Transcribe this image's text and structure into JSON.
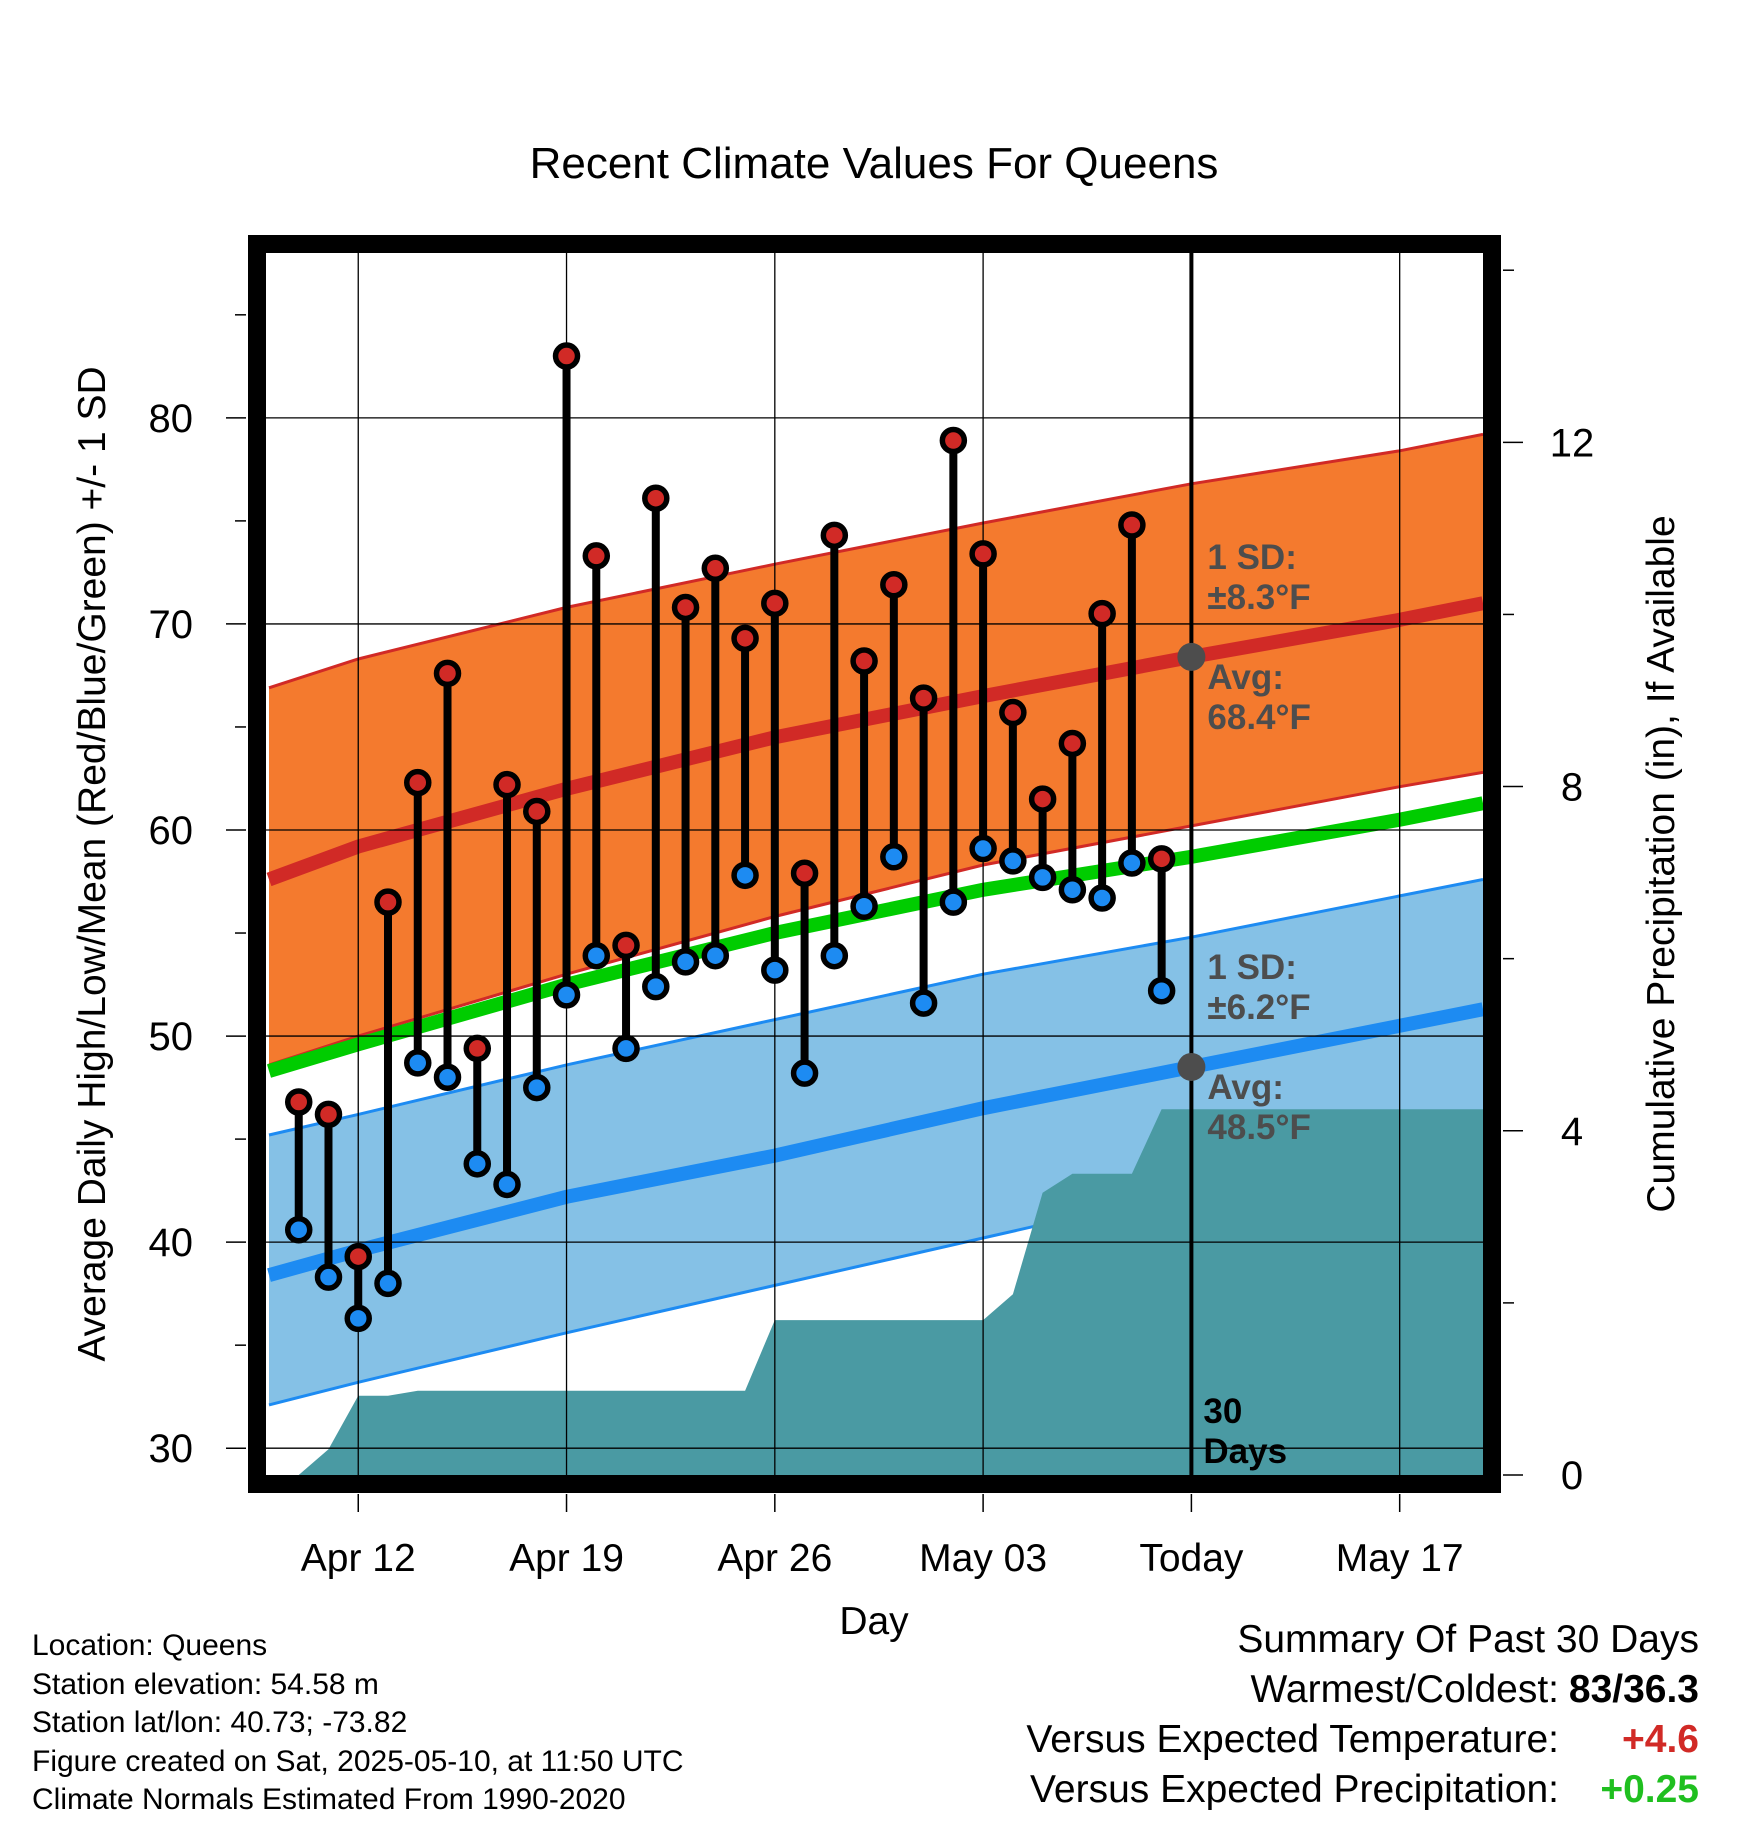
{
  "chart_data": {
    "type": "line",
    "title": "Recent Climate Values For Queens",
    "xlabel": "Day",
    "ylabel": "Average Daily High/Low/Mean (Red/Blue/Green) +/- 1 SD",
    "y2label": "Cumulative Precipitation (in), If Available",
    "ylim": [
      28.7,
      88
    ],
    "y2lim": [
      0,
      14.2
    ],
    "yticks": [
      30,
      40,
      50,
      60,
      70,
      80
    ],
    "y2ticks": [
      0,
      4,
      8,
      12
    ],
    "x_tick_labels": [
      "Apr 12",
      "Apr 19",
      "Apr 26",
      "May 03",
      "Today",
      "May 17"
    ],
    "x_ticks_day": [
      12,
      19,
      26,
      33,
      40,
      47
    ],
    "xlim": [
      8.9,
      49.8
    ],
    "today_day": 40,
    "x_note": "day numbers count April days; 31 = May 01",
    "grid": true,
    "normals": {
      "x_day": [
        9,
        12,
        19,
        26,
        33,
        40,
        47,
        49.8
      ],
      "avg_high": [
        57.6,
        59.2,
        62.0,
        64.5,
        66.5,
        68.4,
        70.2,
        71.0
      ],
      "high_upper": [
        66.9,
        68.3,
        70.8,
        72.9,
        74.9,
        76.8,
        78.4,
        79.2
      ],
      "high_lower": [
        48.6,
        50.0,
        53.0,
        55.8,
        58.3,
        60.2,
        62.1,
        62.8
      ],
      "avg_low": [
        38.4,
        39.6,
        42.2,
        44.2,
        46.5,
        48.5,
        50.5,
        51.3
      ],
      "low_upper": [
        45.2,
        46.2,
        48.6,
        50.8,
        53.0,
        54.8,
        56.8,
        57.6
      ],
      "low_lower": [
        32.1,
        33.2,
        35.6,
        37.9,
        40.2,
        42.5,
        44.6,
        45.3
      ],
      "avg_mean": [
        48.3,
        49.6,
        52.5,
        55.0,
        57.1,
        58.7,
        60.5,
        61.3
      ]
    },
    "series": [
      {
        "name": "High",
        "x": [
          10,
          11,
          12,
          13,
          14,
          15,
          16,
          17,
          18,
          19,
          20,
          21,
          22,
          23,
          24,
          25,
          26,
          27,
          28,
          29,
          30,
          31,
          32,
          33,
          34,
          35,
          36,
          37,
          38,
          39
        ],
        "values": [
          46.8,
          46.2,
          39.3,
          56.5,
          62.3,
          67.6,
          49.4,
          62.2,
          60.9,
          83.0,
          73.3,
          54.4,
          76.1,
          70.8,
          72.7,
          69.3,
          71.0,
          57.9,
          74.3,
          68.2,
          71.9,
          66.4,
          78.9,
          73.4,
          65.7,
          61.5,
          64.2,
          70.5,
          74.8,
          58.6
        ]
      },
      {
        "name": "Low",
        "x": [
          10,
          11,
          12,
          13,
          14,
          15,
          16,
          17,
          18,
          19,
          20,
          21,
          22,
          23,
          24,
          25,
          26,
          27,
          28,
          29,
          30,
          31,
          32,
          33,
          34,
          35,
          36,
          37,
          38,
          39
        ],
        "values": [
          40.6,
          38.3,
          36.3,
          38.0,
          48.7,
          48.0,
          43.8,
          42.8,
          47.5,
          52.0,
          53.9,
          49.4,
          52.4,
          53.6,
          53.9,
          57.8,
          53.2,
          48.2,
          53.9,
          56.3,
          58.7,
          51.6,
          56.5,
          59.1,
          58.5,
          57.7,
          57.1,
          56.7,
          58.4,
          52.2
        ]
      }
    ],
    "precipitation": {
      "x_day": [
        10,
        11,
        12,
        13,
        14,
        15,
        16,
        17,
        18,
        19,
        20,
        21,
        22,
        23,
        24,
        25,
        26,
        27,
        28,
        29,
        30,
        31,
        32,
        33,
        34,
        35,
        36,
        37,
        38,
        39,
        40,
        49.8
      ],
      "cumulative_in": [
        0,
        0.3,
        0.92,
        0.92,
        0.98,
        0.98,
        0.98,
        0.98,
        0.98,
        0.98,
        0.98,
        0.98,
        0.98,
        0.98,
        0.98,
        0.98,
        1.8,
        1.8,
        1.8,
        1.8,
        1.8,
        1.8,
        1.8,
        1.8,
        2.1,
        3.28,
        3.5,
        3.5,
        3.5,
        4.25,
        4.25,
        4.25
      ]
    },
    "annotations": {
      "high_sd_label": "1 SD:",
      "high_sd_value": "±8.3°F",
      "high_avg_label": "Avg:",
      "high_avg_value": "68.4°F",
      "high_avg_today": 68.4,
      "low_sd_label": "1 SD:",
      "low_sd_value": "±6.2°F",
      "low_avg_label": "Avg:",
      "low_avg_value": "48.5°F",
      "low_avg_today": 48.5,
      "days_number": "30",
      "days_word": "Days"
    },
    "colors": {
      "high_band": "#f47a2e",
      "high_line": "#d12a26",
      "low_band": "#85c1e6",
      "low_line": "#1d8bf2",
      "mean_line": "#00cc00",
      "precip_fill": "#4a9aa3",
      "high_dot": "#d12a26",
      "low_dot": "#1d8bf2",
      "annotation_text": "#4d4d4d"
    }
  },
  "footer": {
    "location": "Location: Queens",
    "elevation": "Station elevation: 54.58 m",
    "latlon": "Station lat/lon: 40.73; -73.82",
    "created": "Figure created on Sat, 2025-05-10, at 11:50 UTC",
    "normals_period": "Climate Normals Estimated From 1990-2020"
  },
  "summary": {
    "title": "Summary Of Past 30 Days",
    "warm_cold_label": "Warmest/Coldest:",
    "warm_cold_value": "83/36.3",
    "temp_label": "Versus Expected Temperature:",
    "temp_value": "+4.6",
    "temp_color": "#d12a26",
    "precip_label": "Versus Expected Precipitation:",
    "precip_value": "+0.25",
    "precip_color": "#1fbf1f"
  }
}
